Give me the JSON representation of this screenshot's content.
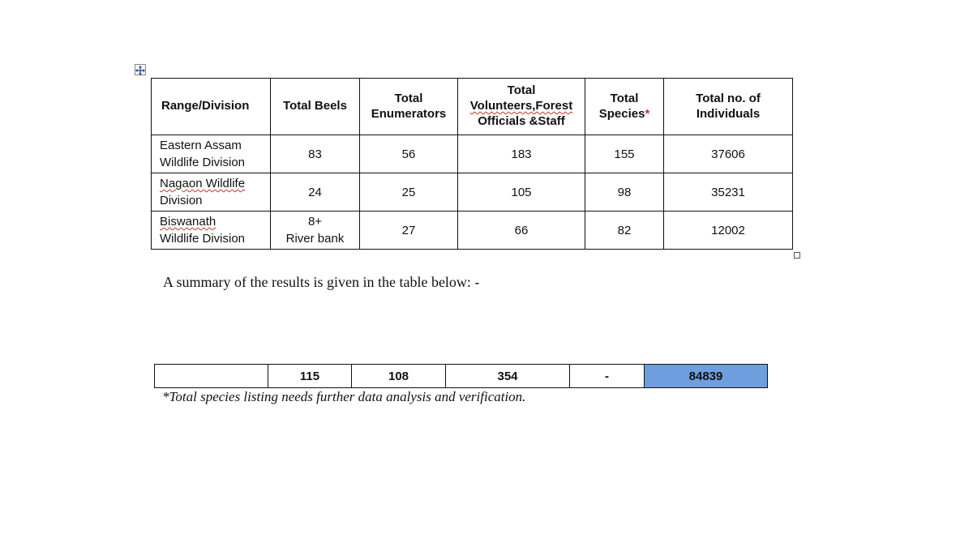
{
  "main_table": {
    "headers": {
      "range_division": "Range/Division",
      "total_beels": "Total Beels",
      "total_enumerators_1": "Total",
      "total_enumerators_2": "Enumerators",
      "volunteers_1": "Total",
      "volunteers_2": "Volunteers,Forest",
      "volunteers_3": "Officials &Staff",
      "species_1": "Total",
      "species_2": "Species",
      "species_mark": "*",
      "individuals_1": "Total no. of",
      "individuals_2": "Individuals"
    },
    "rows": [
      {
        "name_1": "Eastern Assam",
        "name_2": "Wildlife Division",
        "beels_1": "83",
        "beels_2": "",
        "enumerators": "56",
        "volunteers": "183",
        "species": "155",
        "individuals": "37606"
      },
      {
        "name_1": "Nagaon Wildlife",
        "name_2": "Division",
        "beels_1": "24",
        "beels_2": "",
        "enumerators": "25",
        "volunteers": "105",
        "species": "98",
        "individuals": "35231"
      },
      {
        "name_1": "Biswanath",
        "name_2": "Wildlife Division",
        "beels_1": "8+",
        "beels_2": "River bank",
        "enumerators": "27",
        "volunteers": "66",
        "species": "82",
        "individuals": "12002"
      }
    ]
  },
  "summary_text": "A summary of the results is given in the table below: -",
  "totals": {
    "range_division": "",
    "beels": "115",
    "enumerators": "108",
    "volunteers": "354",
    "species": "-",
    "individuals": "84839",
    "highlight_color": "#6f9ede"
  },
  "footnote": "*Total species listing needs further data analysis and verification."
}
